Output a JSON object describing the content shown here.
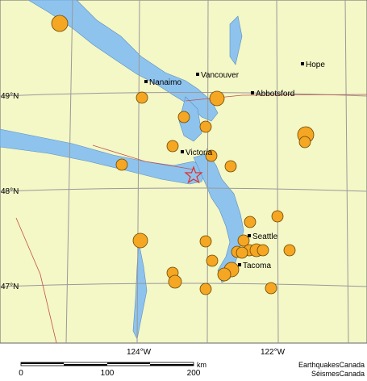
{
  "map": {
    "cities": [
      {
        "label": "Nanaimo"
      },
      {
        "label": "Vancouver"
      },
      {
        "label": "Abbotsford"
      },
      {
        "label": "Hope"
      },
      {
        "label": "Victoria"
      },
      {
        "label": "Seattle"
      },
      {
        "label": "Tacoma"
      }
    ],
    "latitude_labels": [
      "49°N",
      "48°N",
      "47°N"
    ],
    "longitude_labels": [
      "124°W",
      "122°W"
    ],
    "scale_bar": {
      "ticks": [
        0,
        100,
        200
      ],
      "unit": "km"
    },
    "credits": [
      "EarthquakesCanada",
      "SéismesCanada"
    ]
  }
}
